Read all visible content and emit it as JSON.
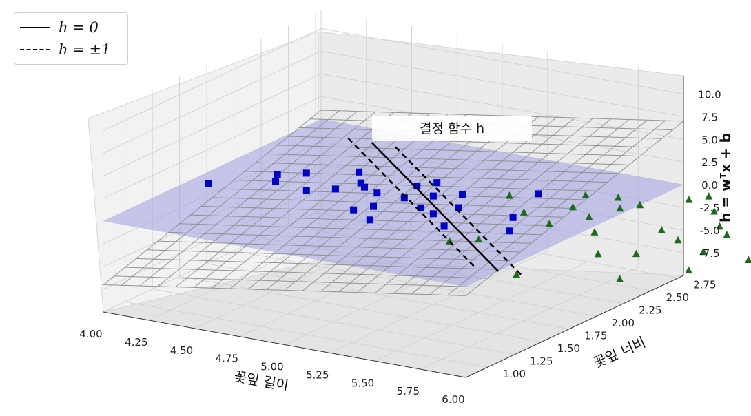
{
  "chart_data": {
    "type": "scatter",
    "xlabel": "꽃잎 길이",
    "ylabel": "꽃잎 너비",
    "zlabel": "h = wᵀx + b",
    "annotation": "결정 함수 h",
    "x_ticks": [
      "4.00",
      "4.25",
      "4.50",
      "4.75",
      "5.00",
      "5.25",
      "5.50",
      "5.75",
      "6.00"
    ],
    "y_ticks": [
      "1.00",
      "1.25",
      "1.50",
      "1.75",
      "2.00",
      "2.25",
      "2.50",
      "2.75"
    ],
    "z_ticks": [
      "-7.5",
      "-5.0",
      "-2.5",
      "0.0",
      "2.5",
      "5.0",
      "7.5",
      "10.0"
    ],
    "legend": [
      {
        "label": "h = 0",
        "style": "solid"
      },
      {
        "label": "h = ±1",
        "style": "dashed"
      }
    ],
    "colors": {
      "class0": "#0000cc",
      "class1": "#1a6b1a",
      "plane": "#9ea0e0",
      "mesh": "#8a8a8a"
    },
    "series": [
      {
        "marker": "square",
        "color": "#0000cc",
        "points": [
          {
            "x": 4.1,
            "y": 1.6
          },
          {
            "x": 4.3,
            "y": 1.9
          },
          {
            "x": 4.35,
            "y": 1.8
          },
          {
            "x": 4.4,
            "y": 2.0
          },
          {
            "x": 4.55,
            "y": 1.75
          },
          {
            "x": 4.6,
            "y": 2.15
          },
          {
            "x": 4.65,
            "y": 1.85
          },
          {
            "x": 4.7,
            "y": 2.0
          },
          {
            "x": 4.75,
            "y": 1.95
          },
          {
            "x": 4.85,
            "y": 1.9
          },
          {
            "x": 4.9,
            "y": 1.6
          },
          {
            "x": 4.95,
            "y": 1.7
          },
          {
            "x": 4.95,
            "y": 2.1
          },
          {
            "x": 5.0,
            "y": 1.9
          },
          {
            "x": 5.0,
            "y": 2.2
          },
          {
            "x": 5.05,
            "y": 1.5
          },
          {
            "x": 5.1,
            "y": 2.0
          },
          {
            "x": 5.15,
            "y": 1.8
          },
          {
            "x": 5.2,
            "y": 2.1
          },
          {
            "x": 5.25,
            "y": 1.75
          },
          {
            "x": 5.3,
            "y": 1.9
          },
          {
            "x": 5.4,
            "y": 1.6
          },
          {
            "x": 5.5,
            "y": 2.3
          },
          {
            "x": 5.6,
            "y": 1.9
          },
          {
            "x": 5.7,
            "y": 1.7
          }
        ]
      },
      {
        "marker": "triangle",
        "color": "#1a6b1a",
        "points": [
          {
            "x": 5.4,
            "y": 2.2
          },
          {
            "x": 5.55,
            "y": 1.4
          },
          {
            "x": 5.6,
            "y": 2.0
          },
          {
            "x": 5.65,
            "y": 1.5
          },
          {
            "x": 5.7,
            "y": 2.4
          },
          {
            "x": 5.75,
            "y": 2.2
          },
          {
            "x": 5.8,
            "y": 1.9
          },
          {
            "x": 5.85,
            "y": 2.45
          },
          {
            "x": 5.9,
            "y": 2.1
          },
          {
            "x": 5.95,
            "y": 2.3
          },
          {
            "x": 6.0,
            "y": 2.4
          },
          {
            "x": 6.05,
            "y": 1.9
          },
          {
            "x": 6.1,
            "y": 1.1
          },
          {
            "x": 6.15,
            "y": 2.6
          },
          {
            "x": 6.2,
            "y": 2.7
          },
          {
            "x": 6.25,
            "y": 1.6
          },
          {
            "x": 6.3,
            "y": 2.1
          },
          {
            "x": 6.35,
            "y": 2.5
          },
          {
            "x": 6.4,
            "y": 1.7
          },
          {
            "x": 6.45,
            "y": 2.0
          },
          {
            "x": 6.5,
            "y": 2.3
          },
          {
            "x": 6.55,
            "y": 1.3
          },
          {
            "x": 6.6,
            "y": 2.2
          },
          {
            "x": 6.65,
            "y": 1.9
          },
          {
            "x": 6.7,
            "y": 2.4
          },
          {
            "x": 6.75,
            "y": 1.6
          },
          {
            "x": 6.8,
            "y": 2.6
          },
          {
            "x": 6.85,
            "y": 2.1
          },
          {
            "x": 6.9,
            "y": 1.9
          }
        ]
      }
    ]
  }
}
